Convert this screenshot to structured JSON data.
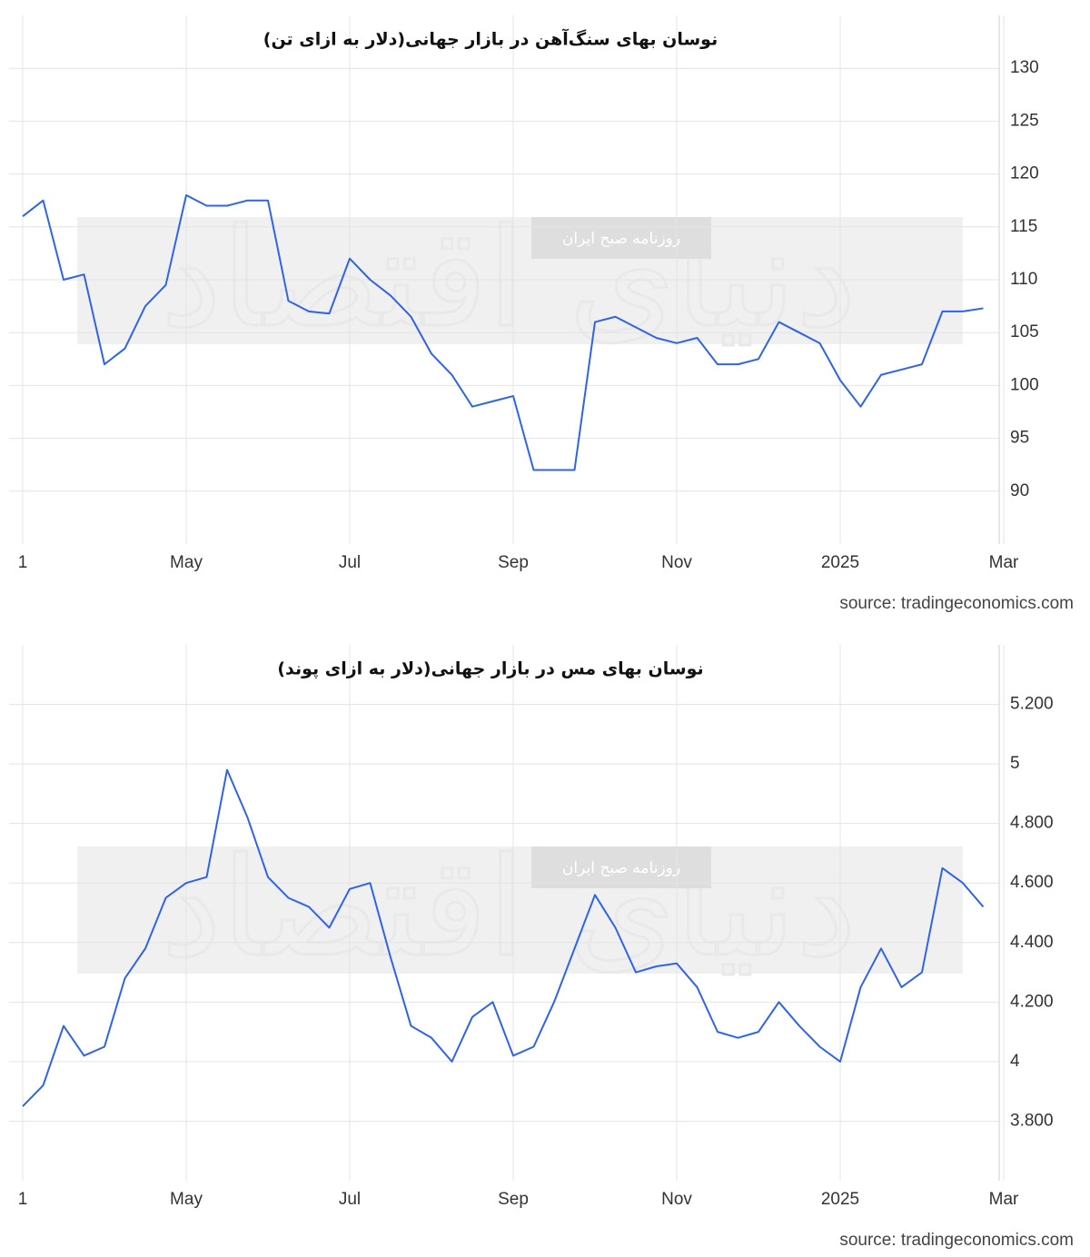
{
  "chart_data": [
    {
      "type": "line",
      "title": "نوسان بهای سنگ‌آهن در بازار جهانی(دلار به ازای تن)",
      "watermark": "روزنامه صبح ایران",
      "watermark_logo": "دنیای اقتصاد",
      "source": "source: tradingeconomics.com",
      "categories": [
        "1",
        null,
        null,
        null,
        null,
        null,
        null,
        null,
        "May",
        null,
        null,
        null,
        null,
        null,
        null,
        null,
        "Jul",
        null,
        null,
        null,
        null,
        null,
        null,
        null,
        "Sep",
        null,
        null,
        null,
        null,
        null,
        null,
        null,
        "Nov",
        null,
        null,
        null,
        null,
        null,
        null,
        null,
        "2025",
        null,
        null,
        null,
        null,
        null,
        null,
        null,
        "Mar"
      ],
      "series": [
        {
          "name": "Iron Ore",
          "color": "#2f63e8",
          "values": [
            116,
            117.5,
            110,
            110.5,
            102,
            103.5,
            107.5,
            109.5,
            118,
            117,
            117,
            117.5,
            117.5,
            108,
            107,
            106.8,
            112,
            110,
            108.5,
            106.5,
            103,
            101,
            98,
            98.5,
            99,
            92,
            92,
            92,
            106,
            106.5,
            105.5,
            104.5,
            104,
            104.5,
            102,
            102,
            102.5,
            106,
            105,
            104,
            100.5,
            98,
            101,
            101.5,
            102,
            107,
            107,
            107.3,
            null
          ]
        }
      ],
      "ylim": [
        85,
        135
      ],
      "yticks": [
        90,
        95,
        100,
        105,
        110,
        115,
        120,
        125,
        130
      ],
      "grid": true
    },
    {
      "type": "line",
      "title": "نوسان بهای مس در بازار جهانی(دلار به ازای پوند)",
      "watermark": "روزنامه صبح ایران",
      "watermark_logo": "دنیای اقتصاد",
      "source": "source: tradingeconomics.com",
      "categories": [
        "1",
        null,
        null,
        null,
        null,
        null,
        null,
        null,
        "May",
        null,
        null,
        null,
        null,
        null,
        null,
        null,
        "Jul",
        null,
        null,
        null,
        null,
        null,
        null,
        null,
        "Sep",
        null,
        null,
        null,
        null,
        null,
        null,
        null,
        "Nov",
        null,
        null,
        null,
        null,
        null,
        null,
        null,
        "2025",
        null,
        null,
        null,
        null,
        null,
        null,
        null,
        "Mar"
      ],
      "series": [
        {
          "name": "Copper",
          "color": "#2f63e8",
          "values": [
            3.85,
            3.92,
            4.12,
            4.02,
            4.05,
            4.28,
            4.38,
            4.55,
            4.6,
            4.62,
            4.98,
            4.82,
            4.62,
            4.55,
            4.52,
            4.45,
            4.58,
            4.6,
            4.35,
            4.12,
            4.08,
            4.0,
            4.15,
            4.2,
            4.02,
            4.05,
            4.2,
            4.38,
            4.56,
            4.45,
            4.3,
            4.32,
            4.33,
            4.25,
            4.1,
            4.08,
            4.1,
            4.2,
            4.12,
            4.05,
            4.0,
            4.25,
            4.38,
            4.25,
            4.3,
            4.65,
            4.6,
            4.52,
            null
          ]
        }
      ],
      "ylim": [
        3.6,
        5.4
      ],
      "yticks": [
        {
          "value": 3.8,
          "label": "3.800"
        },
        4,
        {
          "value": 4.2,
          "label": "4.200"
        },
        {
          "value": 4.4,
          "label": "4.400"
        },
        {
          "value": 4.6,
          "label": "4.600"
        },
        {
          "value": 4.8,
          "label": "4.800"
        },
        5,
        {
          "value": 5.2,
          "label": "5.200"
        }
      ],
      "grid": true
    }
  ]
}
